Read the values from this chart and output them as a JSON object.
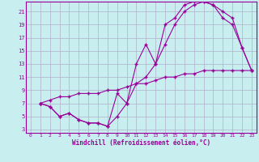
{
  "xlabel": "Windchill (Refroidissement éolien,°C)",
  "bg_color": "#c8eef0",
  "line_color": "#990099",
  "grid_color": "#b0b0c8",
  "xlim": [
    -0.5,
    23.5
  ],
  "ylim": [
    2.5,
    22.5
  ],
  "xticks": [
    0,
    1,
    2,
    3,
    4,
    5,
    6,
    7,
    8,
    9,
    10,
    11,
    12,
    13,
    14,
    15,
    16,
    17,
    18,
    19,
    20,
    21,
    22,
    23
  ],
  "yticks": [
    3,
    5,
    7,
    9,
    11,
    13,
    15,
    17,
    19,
    21
  ],
  "line1_x": [
    1,
    2,
    3,
    4,
    5,
    6,
    7,
    8,
    9,
    10,
    11,
    12,
    13,
    14,
    15,
    16,
    17,
    18,
    19,
    20,
    21,
    22,
    23
  ],
  "line1_y": [
    7,
    6.5,
    5,
    5.5,
    4.5,
    4.0,
    4.0,
    3.5,
    8.5,
    7,
    13,
    16,
    13,
    19,
    20,
    22,
    22.5,
    22.5,
    22,
    21,
    20,
    15.5,
    12
  ],
  "line2_x": [
    1,
    2,
    3,
    4,
    5,
    6,
    7,
    8,
    9,
    10,
    11,
    12,
    13,
    14,
    15,
    16,
    17,
    18,
    19,
    20,
    21,
    22,
    23
  ],
  "line2_y": [
    7,
    6.5,
    5,
    5.5,
    4.5,
    4.0,
    4.0,
    3.5,
    5,
    7,
    10,
    11,
    13,
    16,
    19,
    21,
    22,
    22.5,
    22,
    20,
    19,
    15.5,
    12
  ],
  "line3_x": [
    1,
    2,
    3,
    4,
    5,
    6,
    7,
    8,
    9,
    10,
    11,
    12,
    13,
    14,
    15,
    16,
    17,
    18,
    19,
    20,
    21,
    22,
    23
  ],
  "line3_y": [
    7,
    7.5,
    8,
    8.0,
    8.5,
    8.5,
    8.5,
    9.0,
    9.0,
    9.5,
    10,
    10,
    10.5,
    11,
    11,
    11.5,
    11.5,
    12,
    12,
    12,
    12,
    12,
    12
  ]
}
